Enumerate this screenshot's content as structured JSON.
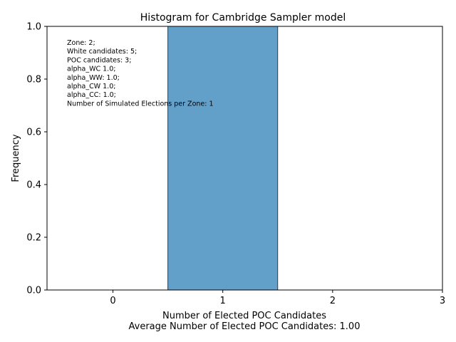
{
  "chart_data": {
    "type": "bar",
    "title": "Histogram for Cambridge Sampler model",
    "xlabel": "Number of Elected POC Candidates",
    "xlabel_sub": "Average Number of Elected POC Candidates: 1.00",
    "ylabel": "Frequency",
    "xlim": [
      -0.6,
      3.0
    ],
    "ylim": [
      0,
      1.0
    ],
    "xticks": [
      0,
      1,
      2,
      3
    ],
    "yticks": [
      0.0,
      0.2,
      0.4,
      0.6,
      0.8,
      1.0
    ],
    "bins": [
      {
        "left": -0.5,
        "right": 0.5,
        "value": 0
      },
      {
        "left": 0.5,
        "right": 1.5,
        "value": 1.0
      },
      {
        "left": 1.5,
        "right": 2.5,
        "value": 0
      }
    ],
    "bar_color": "#1f77b4",
    "bar_edge_color": "#000000",
    "annotation_lines": [
      "Zone: 2;",
      "White candidates: 5;",
      "POC candidates: 3;",
      "alpha_WC 1.0;",
      "alpha_WW: 1.0;",
      "alpha_CW 1.0;",
      "alpha_CC: 1.0;",
      "Number of Simulated Elections per Zone: 1"
    ],
    "grid": false,
    "legend": "none"
  }
}
